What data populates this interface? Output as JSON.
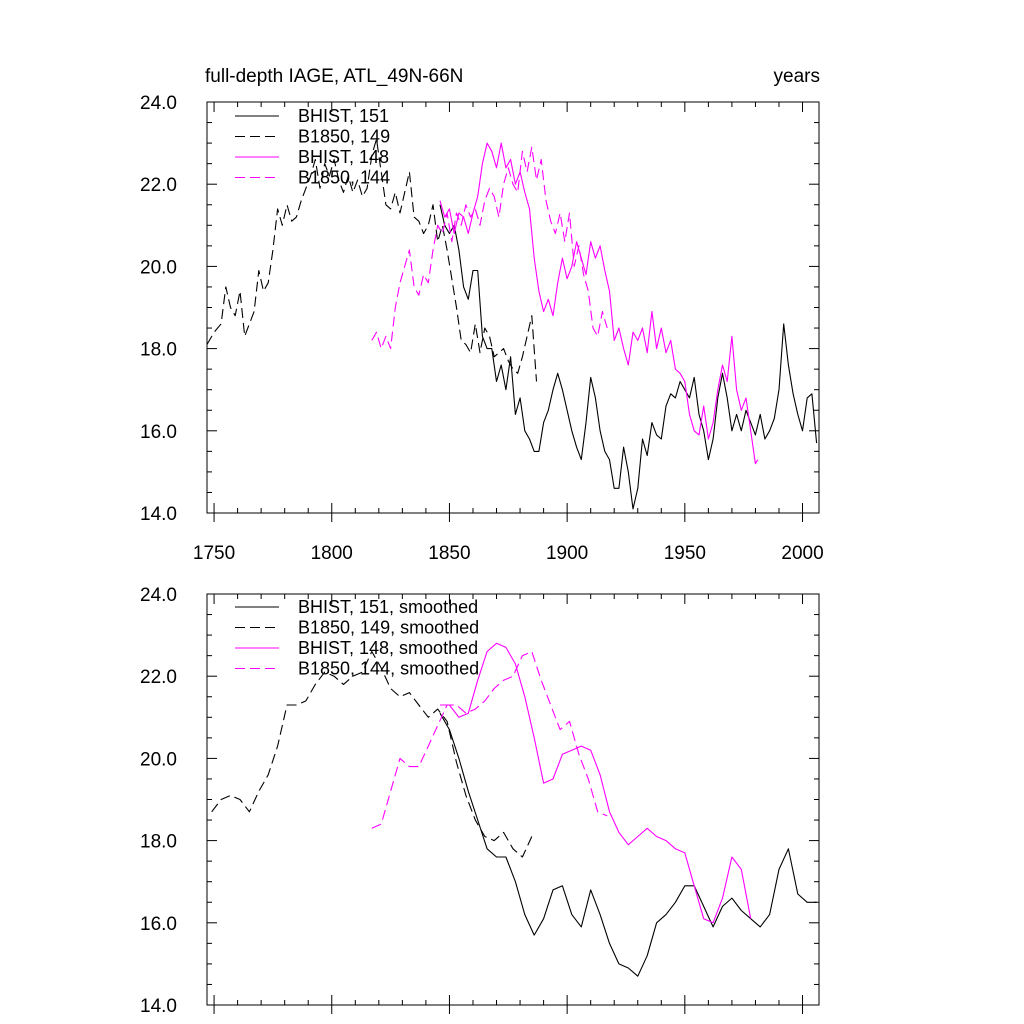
{
  "chart_data": [
    {
      "type": "line",
      "title": "full-depth IAGE, ATL_49N-66N",
      "units": "years",
      "xlim": [
        1747,
        2007
      ],
      "ylim": [
        14.0,
        24.0
      ],
      "x_ticks": [
        "1750",
        "1800",
        "1850",
        "1900",
        "1950",
        "2000"
      ],
      "y_ticks": [
        "14.0",
        "16.0",
        "18.0",
        "20.0",
        "22.0",
        "24.0"
      ],
      "grid": false,
      "legend_position": "top-left",
      "series": [
        {
          "name": "BHIST, 151",
          "color": "#000000",
          "dash": "solid",
          "x": [
            1846,
            1848,
            1850,
            1852,
            1854,
            1856,
            1858,
            1860,
            1862,
            1864,
            1866,
            1868,
            1870,
            1872,
            1874,
            1876,
            1878,
            1880,
            1882,
            1884,
            1886,
            1888,
            1890,
            1892,
            1894,
            1896,
            1898,
            1900,
            1902,
            1904,
            1906,
            1908,
            1910,
            1912,
            1914,
            1916,
            1918,
            1920,
            1922,
            1924,
            1926,
            1928,
            1930,
            1932,
            1934,
            1936,
            1938,
            1940,
            1942,
            1944,
            1946,
            1948,
            1950,
            1952,
            1954,
            1956,
            1958,
            1960,
            1962,
            1964,
            1966,
            1968,
            1970,
            1972,
            1974,
            1976,
            1978,
            1980,
            1982,
            1984,
            1986,
            1988,
            1990,
            1992,
            1994,
            1996,
            1998,
            2000,
            2002,
            2004,
            2006
          ],
          "values": [
            21.5,
            21.0,
            20.8,
            21.0,
            20.4,
            19.5,
            19.2,
            19.9,
            19.9,
            18.3,
            18.0,
            18.0,
            17.2,
            17.6,
            17.0,
            17.8,
            16.4,
            16.8,
            16.0,
            15.8,
            15.5,
            15.5,
            16.2,
            16.5,
            17.0,
            17.4,
            17.0,
            16.5,
            16.0,
            15.6,
            15.3,
            16.2,
            17.3,
            16.8,
            16.0,
            15.5,
            15.3,
            14.6,
            14.6,
            15.6,
            15.0,
            14.1,
            14.6,
            15.8,
            15.4,
            16.2,
            15.9,
            15.8,
            16.6,
            16.9,
            16.8,
            17.2,
            17.0,
            16.8,
            17.3,
            16.4,
            16.0,
            15.3,
            15.8,
            16.8,
            17.4,
            16.8,
            16.0,
            16.4,
            16.0,
            16.5,
            16.2,
            15.9,
            16.4,
            15.8,
            16.0,
            16.3,
            17.0,
            18.6,
            17.6,
            16.9,
            16.4,
            16.0,
            16.8,
            16.9,
            15.7
          ]
        },
        {
          "name": "B1850, 149",
          "color": "#000000",
          "dash": "dashed",
          "x": [
            1747,
            1750,
            1753,
            1755,
            1757,
            1759,
            1761,
            1763,
            1765,
            1767,
            1769,
            1771,
            1773,
            1775,
            1777,
            1779,
            1781,
            1783,
            1785,
            1787,
            1789,
            1791,
            1793,
            1795,
            1797,
            1799,
            1801,
            1803,
            1805,
            1807,
            1809,
            1811,
            1813,
            1815,
            1817,
            1819,
            1821,
            1823,
            1825,
            1827,
            1829,
            1831,
            1833,
            1835,
            1837,
            1839,
            1841,
            1843,
            1845,
            1847,
            1849,
            1851,
            1853,
            1855,
            1857,
            1859,
            1861,
            1863,
            1865,
            1867,
            1869,
            1871,
            1873,
            1875,
            1877,
            1879,
            1881,
            1883,
            1885,
            1887
          ],
          "values": [
            18.1,
            18.4,
            18.6,
            19.5,
            19.0,
            18.8,
            19.4,
            18.3,
            18.6,
            18.9,
            19.9,
            19.4,
            19.6,
            20.4,
            21.4,
            21.0,
            21.5,
            21.1,
            21.2,
            21.6,
            21.9,
            22.2,
            22.6,
            21.9,
            22.5,
            22.2,
            22.6,
            22.1,
            21.8,
            22.2,
            21.8,
            22.1,
            21.7,
            21.9,
            22.7,
            23.1,
            22.3,
            21.5,
            21.4,
            21.8,
            21.3,
            21.8,
            22.3,
            21.2,
            21.1,
            20.8,
            21.0,
            21.5,
            20.6,
            21.0,
            20.4,
            19.7,
            19.0,
            18.2,
            18.1,
            17.9,
            18.6,
            17.9,
            18.5,
            18.3,
            17.8,
            17.9,
            18.0,
            17.7,
            17.5,
            17.4,
            17.8,
            18.3,
            18.8,
            17.2
          ]
        },
        {
          "name": "BHIST, 148",
          "color": "#ff00ff",
          "dash": "solid",
          "x": [
            1846,
            1848,
            1850,
            1852,
            1854,
            1856,
            1858,
            1860,
            1862,
            1864,
            1866,
            1868,
            1870,
            1872,
            1874,
            1876,
            1878,
            1880,
            1882,
            1884,
            1886,
            1888,
            1890,
            1892,
            1894,
            1896,
            1898,
            1900,
            1902,
            1904,
            1906,
            1908,
            1910,
            1912,
            1914,
            1916,
            1918,
            1920,
            1922,
            1924,
            1926,
            1928,
            1930,
            1932,
            1934,
            1936,
            1938,
            1940,
            1942,
            1944,
            1946,
            1948,
            1950,
            1952,
            1954,
            1956,
            1958,
            1960,
            1962,
            1964,
            1966,
            1968,
            1970,
            1972,
            1974,
            1976,
            1978,
            1980,
            1981
          ],
          "values": [
            21.6,
            21.2,
            21.4,
            20.8,
            21.3,
            21.2,
            20.8,
            21.3,
            21.7,
            22.5,
            23.0,
            22.8,
            22.4,
            23.0,
            22.4,
            22.6,
            22.0,
            22.3,
            21.8,
            21.4,
            20.2,
            19.4,
            18.9,
            19.2,
            18.8,
            19.6,
            20.2,
            19.7,
            20.0,
            20.6,
            20.2,
            19.8,
            20.6,
            20.2,
            20.5,
            19.9,
            19.4,
            18.2,
            18.5,
            18.0,
            17.6,
            18.4,
            18.2,
            18.5,
            17.9,
            18.9,
            18.0,
            18.5,
            17.9,
            18.2,
            17.5,
            17.4,
            17.2,
            16.4,
            16.0,
            15.9,
            16.6,
            15.8,
            16.2,
            17.0,
            17.6,
            17.2,
            18.3,
            17.0,
            16.5,
            16.8,
            16.0,
            15.2,
            15.3
          ]
        },
        {
          "name": "B1850, 144",
          "color": "#ff00ff",
          "dash": "dashed",
          "x": [
            1817,
            1819,
            1821,
            1823,
            1825,
            1827,
            1829,
            1831,
            1833,
            1835,
            1837,
            1839,
            1841,
            1843,
            1845,
            1847,
            1849,
            1851,
            1853,
            1855,
            1857,
            1859,
            1861,
            1863,
            1865,
            1867,
            1869,
            1871,
            1873,
            1875,
            1877,
            1879,
            1881,
            1883,
            1885,
            1887,
            1889,
            1891,
            1893,
            1895,
            1897,
            1899,
            1901,
            1903,
            1905,
            1907,
            1909,
            1911,
            1913,
            1915,
            1917
          ],
          "values": [
            18.2,
            18.4,
            18.0,
            18.3,
            18.0,
            19.0,
            19.6,
            20.0,
            20.4,
            19.5,
            19.3,
            19.8,
            19.6,
            20.4,
            21.0,
            20.8,
            21.3,
            20.6,
            21.3,
            21.0,
            21.5,
            21.2,
            21.4,
            21.0,
            21.6,
            21.9,
            21.7,
            21.2,
            22.0,
            22.4,
            22.0,
            21.8,
            22.8,
            22.3,
            22.9,
            22.1,
            22.6,
            21.6,
            21.1,
            20.8,
            21.3,
            20.6,
            21.3,
            20.0,
            20.5,
            19.8,
            19.4,
            18.5,
            18.3,
            18.9,
            18.5
          ]
        }
      ]
    },
    {
      "type": "line",
      "xlim": [
        1747,
        2007
      ],
      "ylim": [
        14.0,
        24.0
      ],
      "y_ticks": [
        "14.0",
        "16.0",
        "18.0",
        "20.0",
        "22.0",
        "24.0"
      ],
      "grid": false,
      "legend_position": "top-left",
      "series": [
        {
          "name": "BHIST, 151, smoothed",
          "color": "#000000",
          "dash": "solid",
          "x": [
            1846,
            1850,
            1854,
            1858,
            1862,
            1866,
            1870,
            1874,
            1878,
            1882,
            1886,
            1890,
            1894,
            1898,
            1902,
            1906,
            1910,
            1914,
            1918,
            1922,
            1926,
            1930,
            1934,
            1938,
            1942,
            1946,
            1950,
            1954,
            1958,
            1962,
            1966,
            1970,
            1974,
            1978,
            1982,
            1986,
            1990,
            1994,
            1998,
            2002,
            2006
          ],
          "values": [
            21.1,
            20.7,
            20.0,
            19.2,
            18.5,
            17.8,
            17.6,
            17.6,
            17.0,
            16.2,
            15.7,
            16.1,
            16.8,
            16.9,
            16.2,
            15.9,
            16.8,
            16.2,
            15.5,
            15.0,
            14.9,
            14.7,
            15.2,
            16.0,
            16.2,
            16.5,
            16.9,
            16.9,
            16.4,
            15.9,
            16.4,
            16.6,
            16.3,
            16.1,
            15.9,
            16.2,
            17.3,
            17.8,
            16.7,
            16.5,
            16.5
          ]
        },
        {
          "name": "B1850, 149, smoothed",
          "color": "#000000",
          "dash": "dashed",
          "x": [
            1749,
            1753,
            1757,
            1761,
            1765,
            1769,
            1773,
            1777,
            1781,
            1785,
            1789,
            1793,
            1797,
            1801,
            1805,
            1809,
            1813,
            1817,
            1821,
            1825,
            1829,
            1833,
            1837,
            1841,
            1845,
            1849,
            1853,
            1857,
            1861,
            1865,
            1869,
            1873,
            1877,
            1881,
            1885
          ],
          "values": [
            18.7,
            19.0,
            19.1,
            19.0,
            18.7,
            19.2,
            19.6,
            20.3,
            21.3,
            21.3,
            21.4,
            21.8,
            22.1,
            22.0,
            21.8,
            22.0,
            22.1,
            22.6,
            22.2,
            21.7,
            21.5,
            21.6,
            21.3,
            21.0,
            21.2,
            20.9,
            19.9,
            19.1,
            18.5,
            18.1,
            18.0,
            18.2,
            17.8,
            17.6,
            18.1
          ]
        },
        {
          "name": "BHIST, 148, smoothed",
          "color": "#ff00ff",
          "dash": "solid",
          "x": [
            1846,
            1850,
            1854,
            1858,
            1862,
            1866,
            1870,
            1874,
            1878,
            1882,
            1886,
            1890,
            1894,
            1898,
            1902,
            1906,
            1910,
            1914,
            1918,
            1922,
            1926,
            1930,
            1934,
            1938,
            1942,
            1946,
            1950,
            1954,
            1958,
            1962,
            1966,
            1970,
            1974,
            1978
          ],
          "values": [
            21.3,
            21.3,
            21.0,
            21.1,
            21.9,
            22.6,
            22.8,
            22.7,
            22.3,
            21.5,
            20.5,
            19.4,
            19.5,
            20.1,
            20.2,
            20.3,
            20.2,
            19.6,
            18.7,
            18.2,
            17.9,
            18.1,
            18.3,
            18.1,
            18.0,
            17.8,
            17.7,
            16.9,
            16.1,
            16.0,
            16.6,
            17.6,
            17.3,
            16.1
          ]
        },
        {
          "name": "B1850, 144, smoothed",
          "color": "#ff00ff",
          "dash": "dashed",
          "x": [
            1817,
            1821,
            1825,
            1829,
            1833,
            1837,
            1841,
            1845,
            1849,
            1853,
            1857,
            1861,
            1865,
            1869,
            1873,
            1877,
            1881,
            1885,
            1889,
            1893,
            1897,
            1901,
            1905,
            1909,
            1913,
            1917
          ],
          "values": [
            18.3,
            18.4,
            19.2,
            20.0,
            19.8,
            19.8,
            20.3,
            20.8,
            21.3,
            21.3,
            21.1,
            21.2,
            21.4,
            21.7,
            21.9,
            22.0,
            22.5,
            22.6,
            21.9,
            21.3,
            20.7,
            20.9,
            20.1,
            19.5,
            18.7,
            18.6
          ]
        }
      ]
    }
  ]
}
